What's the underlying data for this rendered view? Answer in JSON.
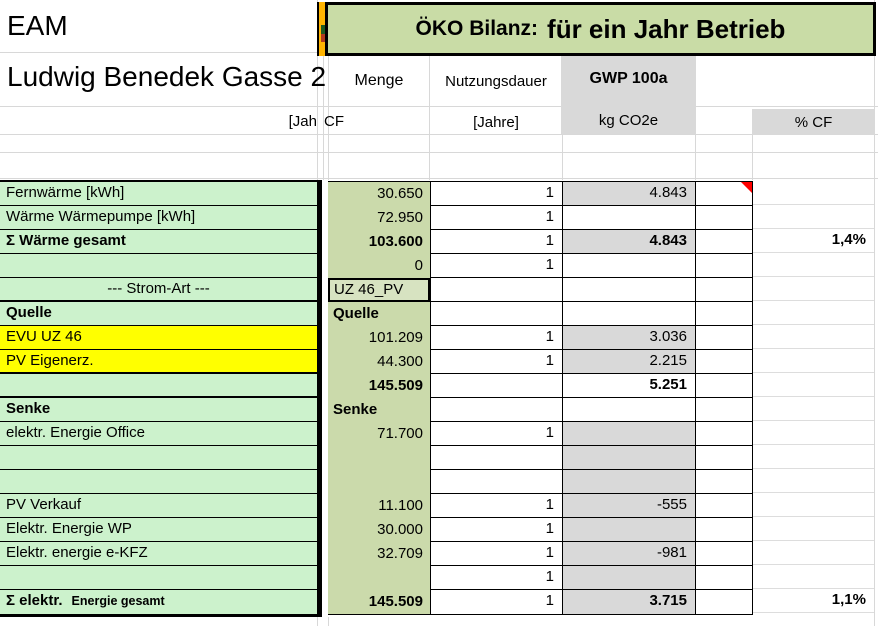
{
  "header": {
    "company": "EAM",
    "address": "Ludwig Benedek Gasse 2",
    "banner_prefix": "ÖKO Bilanz:",
    "banner_main": "für ein Jahr Betrieb"
  },
  "columns": {
    "menge": "Menge",
    "nutzungsdauer": "Nutzungsdauer",
    "gwp": "GWP 100a",
    "gwp_unit": "kg CO2e",
    "nutz_unit": "[Jahre]",
    "pct_label": "% CF"
  },
  "subheader": {
    "clipped_year": "[Jah",
    "cf": "CF"
  },
  "colors": {
    "banner_green": "#C9DCA6",
    "menge_green": "#CBDAAB",
    "uz_cell_green": "#D7E3C1",
    "label_green": "#CCF2CC",
    "highlight_yellow": "#FFFF00",
    "cell_gray": "#D9D9D9",
    "stripe_orange": "#FFB400",
    "comment_red": "#FF0000"
  },
  "rows": [
    {
      "label": "Fernwärme [kWh]",
      "menge": "30.650",
      "nd": "1",
      "gwp": "4.843",
      "gwp_gray": true,
      "comment": true
    },
    {
      "label": "Wärme Wärmepumpe [kWh]",
      "menge": "72.950",
      "nd": "1"
    },
    {
      "label": "Σ Wärme gesamt",
      "label_bold": true,
      "menge": "103.600",
      "menge_bold": true,
      "nd": "1",
      "gwp": "4.843",
      "gwp_gray": true,
      "gwp_bold": true,
      "pct": "1,4%"
    },
    {
      "label": "",
      "menge": "0",
      "nd": "1"
    },
    {
      "label": "--- Strom-Art ---",
      "label_center": true,
      "menge": "UZ 46_PV",
      "menge_left": true,
      "menge_box": true,
      "thick_bottom": true
    },
    {
      "label": "Quelle",
      "label_bold": true,
      "menge": "Quelle",
      "menge_left": true,
      "menge_bold": true
    },
    {
      "label": "EVU UZ 46",
      "yellow": true,
      "menge": "101.209",
      "nd": "1",
      "gwp": "3.036",
      "gwp_gray": true
    },
    {
      "label": "PV Eigenerz.",
      "yellow": true,
      "menge": "44.300",
      "nd": "1",
      "gwp": "2.215",
      "gwp_gray": true,
      "thick_bottom": true
    },
    {
      "label": "",
      "menge": "145.509",
      "menge_bold": true,
      "gwp": "5.251",
      "gwp_bold": true,
      "thick_bottom": true
    },
    {
      "label": "Senke",
      "label_bold": true,
      "menge": "Senke",
      "menge_left": true,
      "menge_bold": true
    },
    {
      "label": "elektr. Energie Office",
      "menge": "71.700",
      "nd": "1",
      "gwp_gray": true
    },
    {
      "label": "",
      "gwp_gray": true
    },
    {
      "label": "",
      "gwp_gray": true
    },
    {
      "label": "PV Verkauf",
      "menge": "11.100",
      "nd": "1",
      "gwp": "-555",
      "gwp_gray": true
    },
    {
      "label": "Elektr. Energie WP",
      "menge": "30.000",
      "nd": "1",
      "gwp_gray": true
    },
    {
      "label": "Elektr. energie e-KFZ",
      "menge": "32.709",
      "nd": "1",
      "gwp": "-981",
      "gwp_gray": true
    },
    {
      "label": "",
      "nd": "1",
      "gwp_gray": true
    },
    {
      "label": "Σ elektr.",
      "label_suffix": "Energie gesamt",
      "label_bold": true,
      "menge": "145.509",
      "menge_bold": true,
      "nd": "1",
      "gwp": "3.715",
      "gwp_gray": true,
      "gwp_bold": true,
      "pct": "1,1%"
    }
  ]
}
